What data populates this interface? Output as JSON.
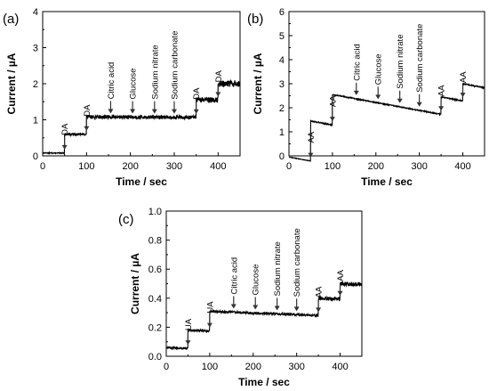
{
  "chart_data": [
    {
      "panel_label": "(a)",
      "type": "line",
      "xlabel": "Time / sec",
      "ylabel": "Current / µA",
      "xlim": [
        0,
        450
      ],
      "ylim": [
        0,
        4
      ],
      "xticks": [
        0,
        100,
        200,
        300,
        400
      ],
      "yticks": [
        0,
        1,
        2,
        3,
        4
      ],
      "grid": false,
      "steps": [
        [
          0,
          0.08
        ],
        [
          50,
          0.6
        ],
        [
          100,
          1.08
        ],
        [
          350,
          1.55
        ],
        [
          400,
          2.0
        ]
      ],
      "drift_per_sec": -5e-05,
      "noise": [
        0.01,
        0.03,
        0.05,
        0.08,
        0.09
      ],
      "annotations": [
        {
          "x": 50,
          "text": "DA"
        },
        {
          "x": 100,
          "text": "DA"
        },
        {
          "x": 155,
          "text": "Citric acid"
        },
        {
          "x": 205,
          "text": "Glucose"
        },
        {
          "x": 255,
          "text": "Sodium nitrate"
        },
        {
          "x": 300,
          "text": "Sodium carbonate"
        },
        {
          "x": 350,
          "text": "DA"
        },
        {
          "x": 400,
          "text": "DA"
        }
      ]
    },
    {
      "panel_label": "(b)",
      "type": "line",
      "xlabel": "Time / sec",
      "ylabel": "Current / µA",
      "xlim": [
        0,
        450
      ],
      "ylim": [
        0,
        6
      ],
      "xticks": [
        0,
        100,
        200,
        300,
        400
      ],
      "yticks": [
        0,
        1,
        2,
        3,
        4,
        5,
        6
      ],
      "grid": false,
      "steps": [
        [
          0,
          -0.05
        ],
        [
          50,
          1.45
        ],
        [
          100,
          2.55
        ],
        [
          350,
          2.45
        ],
        [
          400,
          3.0
        ]
      ],
      "drift_per_sec": -0.0033,
      "noise": [
        0.01,
        0.02,
        0.02,
        0.02,
        0.02
      ],
      "annotations": [
        {
          "x": 50,
          "text": "AA"
        },
        {
          "x": 100,
          "text": "AA"
        },
        {
          "x": 155,
          "text": "Citric acid"
        },
        {
          "x": 205,
          "text": "Glucose"
        },
        {
          "x": 255,
          "text": "Sodium nitrate"
        },
        {
          "x": 300,
          "text": "Sodium carbonate"
        },
        {
          "x": 350,
          "text": "AA"
        },
        {
          "x": 400,
          "text": "AA"
        }
      ]
    },
    {
      "panel_label": "(c)",
      "type": "line",
      "xlabel": "Time / sec",
      "ylabel": "Current / µA",
      "xlim": [
        0,
        450
      ],
      "ylim": [
        0.0,
        1.0
      ],
      "xticks": [
        0,
        100,
        200,
        300,
        400
      ],
      "yticks": [
        0.0,
        0.2,
        0.4,
        0.6,
        0.8,
        1.0
      ],
      "grid": false,
      "steps": [
        [
          0,
          0.06
        ],
        [
          50,
          0.18
        ],
        [
          100,
          0.31
        ],
        [
          350,
          0.4
        ],
        [
          400,
          0.5
        ]
      ],
      "drift_per_sec": -0.00012,
      "noise": [
        0.006,
        0.007,
        0.008,
        0.012,
        0.014
      ],
      "annotations": [
        {
          "x": 50,
          "text": "UA"
        },
        {
          "x": 100,
          "text": "UA"
        },
        {
          "x": 155,
          "text": "Citric acid"
        },
        {
          "x": 205,
          "text": "Glucose"
        },
        {
          "x": 255,
          "text": "Sodium nitrate"
        },
        {
          "x": 300,
          "text": "Sodium carbonate"
        },
        {
          "x": 350,
          "text": "AA"
        },
        {
          "x": 400,
          "text": "AA"
        }
      ]
    }
  ]
}
